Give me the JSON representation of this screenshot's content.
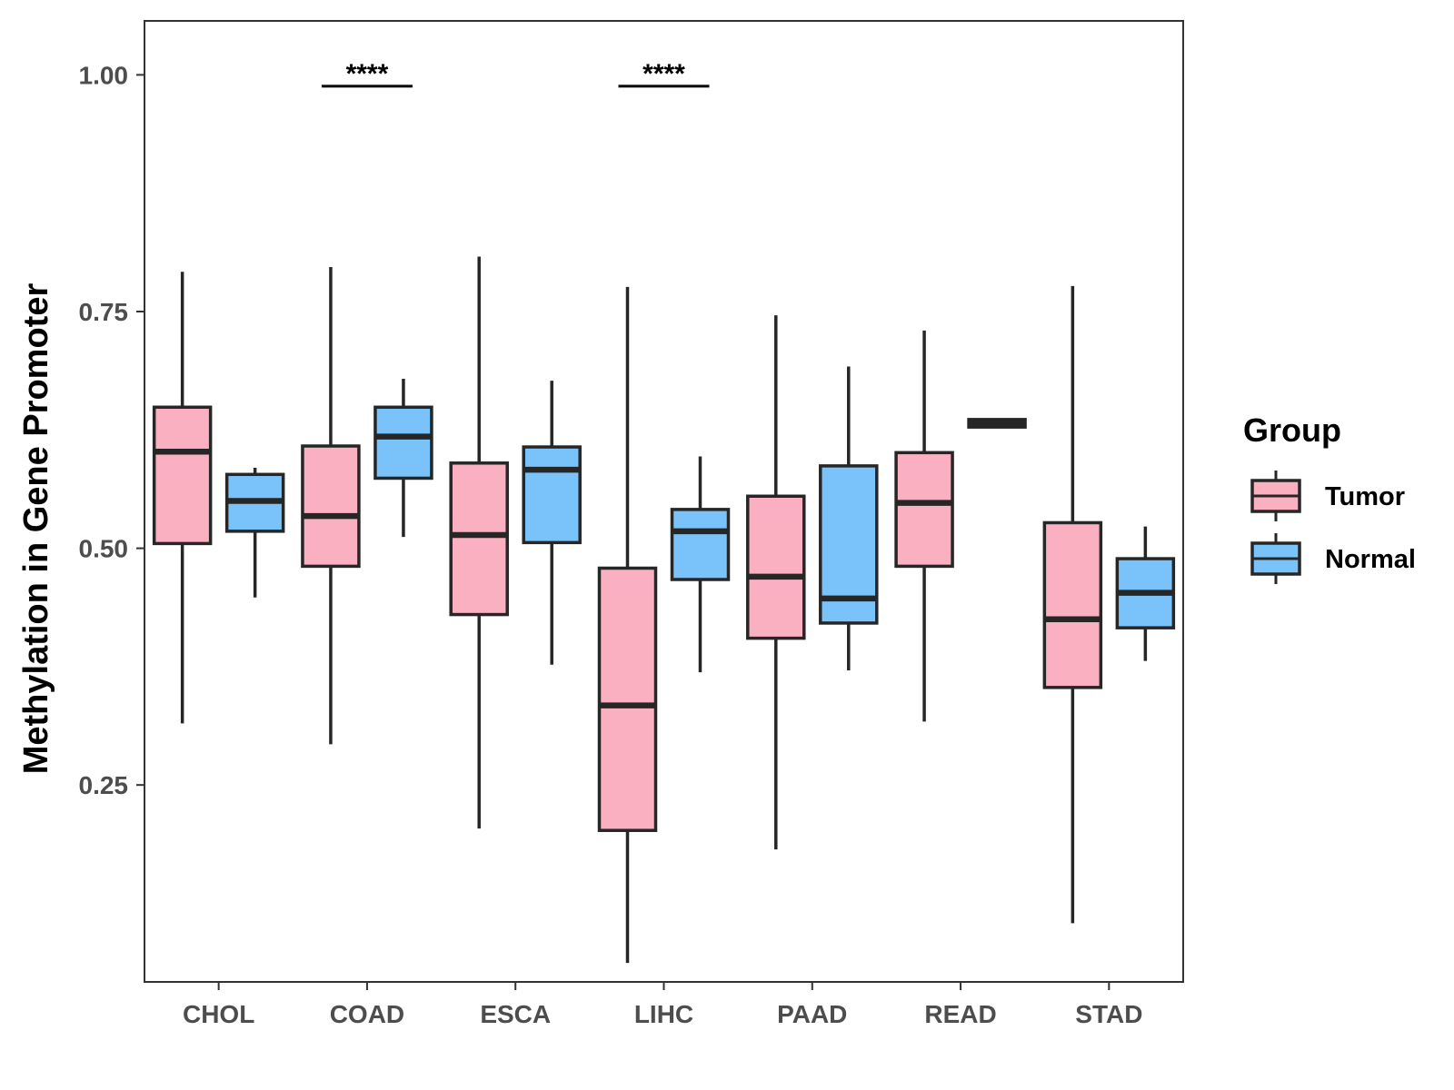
{
  "chart_data": {
    "type": "boxplot",
    "title": "",
    "xlabel": "",
    "ylabel": "Methylation in Gene Promoter",
    "ylim": [
      0.042,
      1.057
    ],
    "yticks": [
      0.25,
      0.5,
      0.75,
      1.0
    ],
    "ytick_labels": [
      "0.25",
      "0.50",
      "0.75",
      "1.00"
    ],
    "categories": [
      "CHOL",
      "COAD",
      "ESCA",
      "LIHC",
      "PAAD",
      "READ",
      "STAD"
    ],
    "legend": {
      "title": "Group",
      "position": "right",
      "entries": [
        {
          "name": "Tumor",
          "color": "#fbb0c2"
        },
        {
          "name": "Normal",
          "color": "#7ac3fa"
        }
      ]
    },
    "series": [
      {
        "name": "Tumor",
        "color": "#fbb0c2",
        "boxes": [
          {
            "category": "CHOL",
            "min": 0.315,
            "q1": 0.505,
            "median": 0.602,
            "q3": 0.649,
            "max": 0.792
          },
          {
            "category": "COAD",
            "min": 0.293,
            "q1": 0.481,
            "median": 0.534,
            "q3": 0.608,
            "max": 0.797
          },
          {
            "category": "ESCA",
            "min": 0.204,
            "q1": 0.43,
            "median": 0.514,
            "q3": 0.59,
            "max": 0.808
          },
          {
            "category": "LIHC",
            "min": 0.062,
            "q1": 0.202,
            "median": 0.334,
            "q3": 0.479,
            "max": 0.776
          },
          {
            "category": "PAAD",
            "min": 0.182,
            "q1": 0.405,
            "median": 0.47,
            "q3": 0.555,
            "max": 0.746
          },
          {
            "category": "READ",
            "min": 0.317,
            "q1": 0.481,
            "median": 0.548,
            "q3": 0.601,
            "max": 0.73
          },
          {
            "category": "STAD",
            "min": 0.104,
            "q1": 0.353,
            "median": 0.425,
            "q3": 0.527,
            "max": 0.777
          }
        ]
      },
      {
        "name": "Normal",
        "color": "#7ac3fa",
        "boxes": [
          {
            "category": "CHOL",
            "min": 0.448,
            "q1": 0.518,
            "median": 0.55,
            "q3": 0.578,
            "max": 0.585
          },
          {
            "category": "COAD",
            "min": 0.512,
            "q1": 0.574,
            "median": 0.618,
            "q3": 0.649,
            "max": 0.679
          },
          {
            "category": "ESCA",
            "min": 0.377,
            "q1": 0.506,
            "median": 0.583,
            "q3": 0.607,
            "max": 0.677
          },
          {
            "category": "LIHC",
            "min": 0.369,
            "q1": 0.467,
            "median": 0.518,
            "q3": 0.541,
            "max": 0.597
          },
          {
            "category": "PAAD",
            "min": 0.371,
            "q1": 0.421,
            "median": 0.447,
            "q3": 0.587,
            "max": 0.692
          },
          {
            "category": "READ",
            "min": 0.628,
            "q1": 0.628,
            "median": 0.632,
            "q3": 0.636,
            "max": 0.636
          },
          {
            "category": "STAD",
            "min": 0.381,
            "q1": 0.416,
            "median": 0.453,
            "q3": 0.489,
            "max": 0.523
          }
        ]
      }
    ],
    "annotations": [
      {
        "category": "COAD",
        "label": "****",
        "y": 0.988
      },
      {
        "category": "LIHC",
        "label": "****",
        "y": 0.988
      }
    ]
  }
}
